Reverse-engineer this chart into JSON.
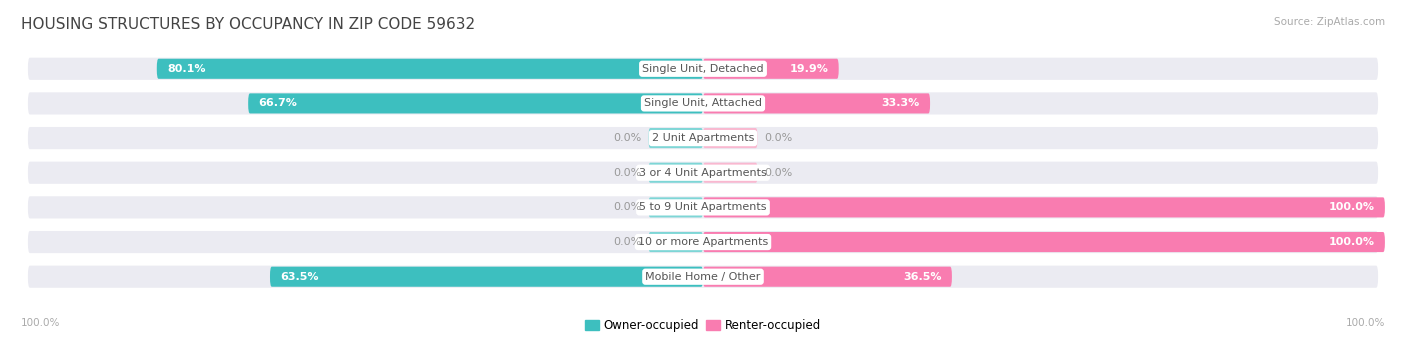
{
  "title": "HOUSING STRUCTURES BY OCCUPANCY IN ZIP CODE 59632",
  "source": "Source: ZipAtlas.com",
  "categories": [
    "Single Unit, Detached",
    "Single Unit, Attached",
    "2 Unit Apartments",
    "3 or 4 Unit Apartments",
    "5 to 9 Unit Apartments",
    "10 or more Apartments",
    "Mobile Home / Other"
  ],
  "owner_pct": [
    80.1,
    66.7,
    0.0,
    0.0,
    0.0,
    0.0,
    63.5
  ],
  "renter_pct": [
    19.9,
    33.3,
    0.0,
    0.0,
    100.0,
    100.0,
    36.5
  ],
  "owner_color": "#3dbfbf",
  "owner_stub_color": "#7ed6d6",
  "renter_color": "#f97cb0",
  "renter_stub_color": "#f9b8d0",
  "row_bg_color": "#ebebf2",
  "background_color": "#ffffff",
  "title_fontsize": 11,
  "source_fontsize": 7.5,
  "bar_label_fontsize": 8,
  "cat_label_fontsize": 8,
  "axis_label_color": "#aaaaaa",
  "center_label_color": "#555555",
  "value_label_white": "#ffffff",
  "value_label_gray": "#999999"
}
